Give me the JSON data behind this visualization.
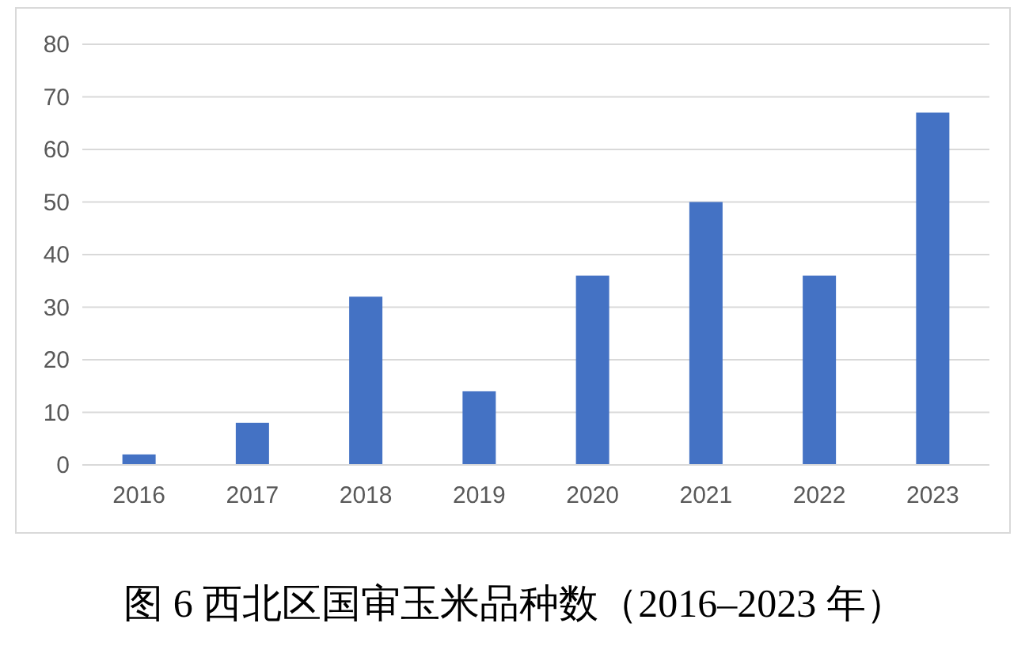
{
  "chart_data": {
    "type": "bar",
    "title": "图 6 西北区国审玉米品种数（2016–2023 年）",
    "categories": [
      "2016",
      "2017",
      "2018",
      "2019",
      "2020",
      "2021",
      "2022",
      "2023"
    ],
    "values": [
      2,
      8,
      32,
      14,
      36,
      50,
      36,
      67
    ],
    "color": "#4472c4",
    "ylim": [
      0,
      80
    ],
    "yticks": [
      0,
      10,
      20,
      30,
      40,
      50,
      60,
      70,
      80
    ],
    "grid": "y"
  }
}
